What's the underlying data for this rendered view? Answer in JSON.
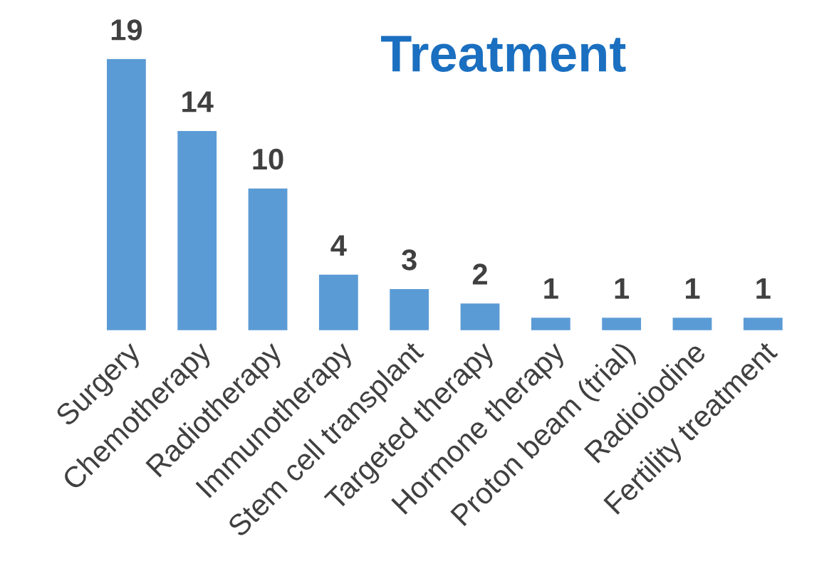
{
  "chart_data": {
    "type": "bar",
    "title": "Treatment",
    "categories": [
      "Surgery",
      "Chemotherapy",
      "Radiotherapy",
      "Immunotherapy",
      "Stem cell transplant",
      "Targeted therapy",
      "Hormone therapy",
      "Proton beam (trial)",
      "Radioiodine",
      "Fertility treatment"
    ],
    "values": [
      19,
      14,
      10,
      4,
      3,
      2,
      1,
      1,
      1,
      1
    ],
    "color": "#5b9bd5",
    "data_labels": true,
    "grid": false,
    "legend": false
  }
}
